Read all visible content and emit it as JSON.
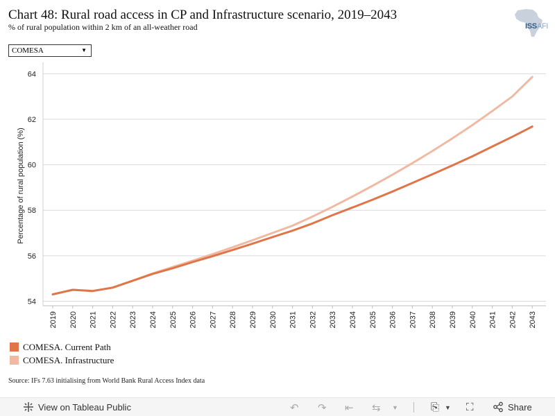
{
  "header": {
    "title": "Chart 48: Rural road access in CP and Infrastructure scenario, 2019–2043",
    "subtitle": "% of rural population within 2 km of an all-weather road",
    "logo_text": "ISS",
    "logo_text_light": "AFI"
  },
  "filter": {
    "selected": "COMESA"
  },
  "chart_data": {
    "type": "line",
    "x": [
      2019,
      2020,
      2021,
      2022,
      2023,
      2024,
      2025,
      2026,
      2027,
      2028,
      2029,
      2030,
      2031,
      2032,
      2033,
      2034,
      2035,
      2036,
      2037,
      2038,
      2039,
      2040,
      2041,
      2042,
      2043
    ],
    "series": [
      {
        "name": "COMESA. Current Path",
        "color": "#e07549",
        "values": [
          54.3,
          54.5,
          54.45,
          54.6,
          54.9,
          55.2,
          55.45,
          55.72,
          55.98,
          56.25,
          56.53,
          56.82,
          57.1,
          57.42,
          57.78,
          58.12,
          58.46,
          58.82,
          59.2,
          59.58,
          59.97,
          60.37,
          60.8,
          61.23,
          61.68
        ]
      },
      {
        "name": "COMESA. Infrastructure",
        "color": "#f0b9a1",
        "values": [
          54.3,
          54.5,
          54.45,
          54.6,
          54.9,
          55.22,
          55.5,
          55.78,
          56.07,
          56.37,
          56.68,
          57.0,
          57.32,
          57.72,
          58.15,
          58.6,
          59.07,
          59.56,
          60.07,
          60.6,
          61.16,
          61.74,
          62.36,
          63.0,
          63.86
        ]
      }
    ],
    "ylabel": "Percentage of rural population (%)",
    "xlabel": "",
    "ylim": [
      53.8,
      64.5
    ],
    "yticks": [
      54,
      56,
      58,
      60,
      62,
      64
    ],
    "grid": true,
    "legend_position": "bottom-left"
  },
  "source": "Source: IFs 7.63 initialising from World Bank Rural Access Index data",
  "toolbar": {
    "view_label": "View on Tableau Public",
    "share_label": "Share"
  }
}
